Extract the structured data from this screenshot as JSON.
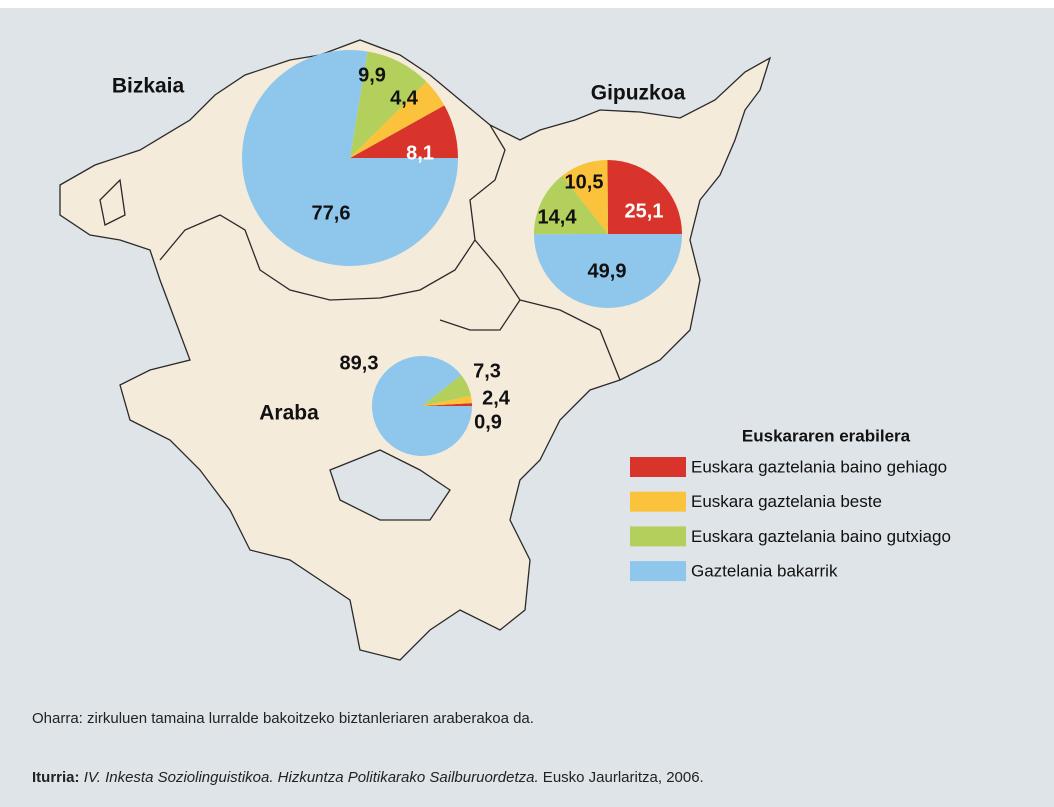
{
  "chart_data": [
    {
      "type": "pie",
      "title": "Bizkaia",
      "values": [
        8.1,
        4.4,
        9.9,
        77.6
      ],
      "value_labels": [
        "8,1",
        "4,4",
        "9,9",
        "77,6"
      ]
    },
    {
      "type": "pie",
      "title": "Gipuzkoa",
      "values": [
        25.1,
        10.5,
        14.4,
        49.9
      ],
      "value_labels": [
        "25,1",
        "10,5",
        "14,4",
        "49,9"
      ]
    },
    {
      "type": "pie",
      "title": "Araba",
      "values": [
        0.9,
        2.4,
        7.3,
        89.3
      ],
      "value_labels": [
        "0,9",
        "2,4",
        "7,3",
        "89,3"
      ]
    }
  ],
  "legend": {
    "title": "Euskararen erabilera",
    "entries": [
      {
        "label": "Euskara gaztelania baino gehiago",
        "color": "#d9342b"
      },
      {
        "label": "Euskara gaztelania beste",
        "color": "#fbc23b"
      },
      {
        "label": "Euskara gaztelania baino gutxiago",
        "color": "#b3d05c"
      },
      {
        "label": "Gaztelania bakarrik",
        "color": "#8ec6ec"
      }
    ]
  },
  "note": "Oharra: zirkuluen tamaina lurralde bakoitzeko biztanleriaren araberakoa da.",
  "source": {
    "label": "Iturria:",
    "title": "IV. Inkesta Soziolinguistikoa. Hizkuntza Politikarako Sailburuordetza.",
    "publisher": " Eusko Jaurlaritza, 2006."
  }
}
